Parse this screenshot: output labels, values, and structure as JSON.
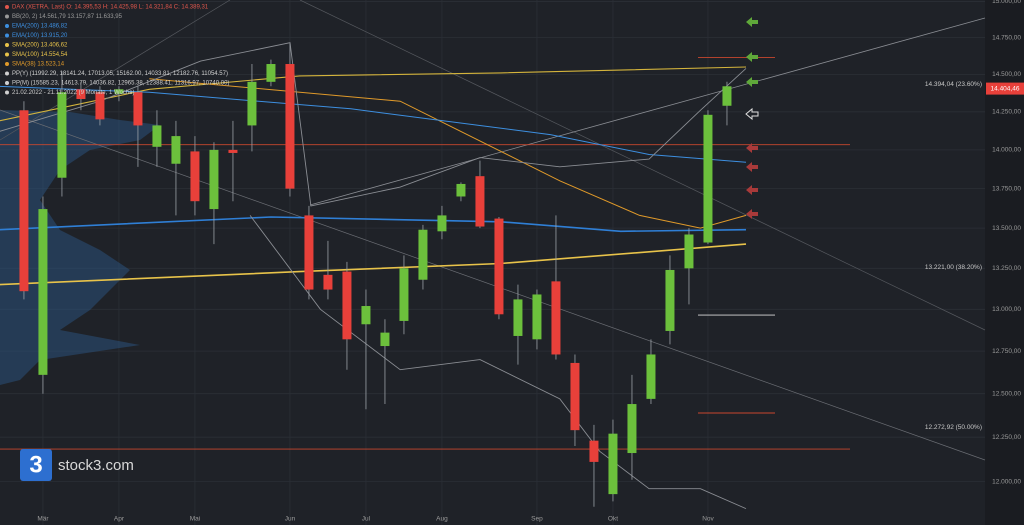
{
  "chart_data": {
    "type": "candlestick",
    "legend": [
      {
        "text": "DAX (XETRA, Last)  O: 14.395,53  H: 14.425,98  L: 14.321,84  C: 14.389,31",
        "color": "#e2574c"
      },
      {
        "text": "BB(20, 2)  14.561,79  13.157,87  11.633,95",
        "color": "#9a9a9a"
      },
      {
        "text": "EMA(200)  13.486,82",
        "color": "#3d8fe0"
      },
      {
        "text": "EMA(100)  13.915,20",
        "color": "#3d8fe0"
      },
      {
        "text": "SMA(200)  13.406,62",
        "color": "#e8c34a"
      },
      {
        "text": "SMA(100)  14.554,54",
        "color": "#e8c34a"
      },
      {
        "text": "SMA(38)  13.523,14",
        "color": "#e09a2a"
      },
      {
        "text": "PP(Y)  (11992.29, 18141.24, 17013.05, 15162.00, 14033.81, 12182.76, 11054.57)",
        "color": "#d0d0d0"
      },
      {
        "text": "PP(M)  (15585.23, 14613.79, 14036.82, 12965.38, 12388.41, 11316.97, 10740.00)",
        "color": "#d0d0d0"
      },
      {
        "text": "21.02.2022 - 21.11.2022  (9 Monate, 1 Woche)",
        "color": "#d0d0d0"
      }
    ],
    "logo": "stock3.com",
    "logo_mark": "3",
    "up_color": "#6cc03c",
    "down_color": "#e8403a",
    "log_scale": true,
    "grid": true,
    "ylim": [
      11760,
      15010
    ],
    "xlim": [
      -1.26,
      50.58
    ],
    "yticks": [
      {
        "value": 15000,
        "label": "15.000,00"
      },
      {
        "value": 14750,
        "label": "14.750,00"
      },
      {
        "value": 14500,
        "label": "14.500,00"
      },
      {
        "value": 14250,
        "label": "14.250,00"
      },
      {
        "value": 14000,
        "label": "14.000,00"
      },
      {
        "value": 13750,
        "label": "13.750,00"
      },
      {
        "value": 13500,
        "label": "13.500,00"
      },
      {
        "value": 13250,
        "label": "13.250,00"
      },
      {
        "value": 13000,
        "label": "13.000,00"
      },
      {
        "value": 12750,
        "label": "12.750,00"
      },
      {
        "value": 12500,
        "label": "12.500,00"
      },
      {
        "value": 12250,
        "label": "12.250,00"
      },
      {
        "value": 12000,
        "label": "12.000,00"
      }
    ],
    "xticks": [
      {
        "value": 1,
        "label": "Mär"
      },
      {
        "value": 5,
        "label": "Apr"
      },
      {
        "value": 9,
        "label": "Mai"
      },
      {
        "value": 14,
        "label": "Jun"
      },
      {
        "value": 18,
        "label": "Jul"
      },
      {
        "value": 22,
        "label": "Aug"
      },
      {
        "value": 27,
        "label": "Sep"
      },
      {
        "value": 31,
        "label": "Okt"
      },
      {
        "value": 36,
        "label": "Nov"
      }
    ],
    "candles": [
      {
        "open": 14260,
        "high": 14320,
        "low": 13060,
        "close": 13110
      },
      {
        "open": 12610,
        "high": 13700,
        "low": 12500,
        "close": 13620
      },
      {
        "open": 13820,
        "high": 14520,
        "low": 13700,
        "close": 14380
      },
      {
        "open": 14400,
        "high": 14450,
        "low": 14260,
        "close": 14335
      },
      {
        "open": 14380,
        "high": 14420,
        "low": 14160,
        "close": 14200
      },
      {
        "open": 14370,
        "high": 14420,
        "low": 14320,
        "close": 14400
      },
      {
        "open": 14380,
        "high": 14420,
        "low": 13890,
        "close": 14160
      },
      {
        "open": 14020,
        "high": 14260,
        "low": 13890,
        "close": 14160
      },
      {
        "open": 13910,
        "high": 14190,
        "low": 13580,
        "close": 14090
      },
      {
        "open": 13990,
        "high": 14090,
        "low": 13580,
        "close": 13670
      },
      {
        "open": 13620,
        "high": 14050,
        "low": 13400,
        "close": 14000
      },
      {
        "open": 14000,
        "high": 14190,
        "low": 13670,
        "close": 13980
      },
      {
        "open": 14160,
        "high": 14570,
        "low": 13990,
        "close": 14450
      },
      {
        "open": 14450,
        "high": 14600,
        "low": 14420,
        "close": 14570
      },
      {
        "open": 14570,
        "high": 14710,
        "low": 13700,
        "close": 13750
      },
      {
        "open": 13580,
        "high": 13640,
        "low": 13060,
        "close": 13120
      },
      {
        "open": 13210,
        "high": 13420,
        "low": 13060,
        "close": 13120
      },
      {
        "open": 13230,
        "high": 13290,
        "low": 12640,
        "close": 12820
      },
      {
        "open": 12910,
        "high": 13120,
        "low": 12410,
        "close": 13020
      },
      {
        "open": 12780,
        "high": 12940,
        "low": 12440,
        "close": 12860
      },
      {
        "open": 12930,
        "high": 13330,
        "low": 12850,
        "close": 13250
      },
      {
        "open": 13180,
        "high": 13520,
        "low": 13120,
        "close": 13490
      },
      {
        "open": 13480,
        "high": 13640,
        "low": 13430,
        "close": 13580
      },
      {
        "open": 13700,
        "high": 13790,
        "low": 13670,
        "close": 13780
      },
      {
        "open": 13830,
        "high": 13930,
        "low": 13500,
        "close": 13510
      },
      {
        "open": 13560,
        "high": 13570,
        "low": 12940,
        "close": 12970
      },
      {
        "open": 12840,
        "high": 13150,
        "low": 12670,
        "close": 13060
      },
      {
        "open": 12820,
        "high": 13120,
        "low": 12760,
        "close": 13090
      },
      {
        "open": 13170,
        "high": 13580,
        "low": 12700,
        "close": 12730
      },
      {
        "open": 12680,
        "high": 12730,
        "low": 12200,
        "close": 12290
      },
      {
        "open": 12230,
        "high": 12320,
        "low": 11860,
        "close": 12110
      },
      {
        "open": 11930,
        "high": 12350,
        "low": 11890,
        "close": 12270
      },
      {
        "open": 12160,
        "high": 12610,
        "low": 12010,
        "close": 12440
      },
      {
        "open": 12470,
        "high": 12820,
        "low": 12440,
        "close": 12730
      },
      {
        "open": 12870,
        "high": 13330,
        "low": 12790,
        "close": 13240
      },
      {
        "open": 13250,
        "high": 13500,
        "low": 13030,
        "close": 13460
      },
      {
        "open": 13410,
        "high": 14260,
        "low": 13400,
        "close": 14230
      },
      {
        "open": 14290,
        "high": 14450,
        "low": 14160,
        "close": 14420
      }
    ],
    "lines": [
      {
        "color": "#e8c34a",
        "width": 1.6,
        "x": [
          -1.3,
          14.5,
          25.1,
          38
        ],
        "values": [
          13150,
          13230,
          13280,
          13400
        ]
      },
      {
        "color": "#d4b43c",
        "width": 1.1,
        "x": [
          -1.3,
          6.6,
          14.5,
          25.1,
          38
        ],
        "values": [
          14190,
          14400,
          14490,
          14510,
          14550
        ]
      },
      {
        "color": "#e09a2a",
        "width": 1,
        "x": [
          6.6,
          19.8,
          28.2,
          32.4,
          35.6,
          38
        ],
        "values": [
          14470,
          14320,
          13800,
          13580,
          13500,
          13580
        ]
      },
      {
        "color": "#2f7fd6",
        "width": 1.6,
        "x": [
          -1.3,
          13,
          25.1,
          31.4,
          38
        ],
        "values": [
          13490,
          13570,
          13540,
          13480,
          13490
        ]
      },
      {
        "color": "#3d8fe0",
        "width": 1,
        "x": [
          -1.3,
          6.6,
          17.2,
          27.7,
          32.9,
          38
        ],
        "values": [
          14420,
          14380,
          14270,
          14100,
          13970,
          13920
        ]
      },
      {
        "color": "#8a8d93",
        "width": 0.9,
        "x": [
          -1.3,
          4,
          9.3,
          14,
          15.1,
          19.8,
          24,
          28.2,
          32.9,
          35.6,
          38
        ],
        "values": [
          14120,
          14320,
          14590,
          14715,
          13640,
          13760,
          13950,
          13890,
          13940,
          14260,
          14540
        ]
      },
      {
        "color": "#8a8d93",
        "width": 0.9,
        "x": [
          11.9,
          15.6,
          19.8,
          24,
          28.2,
          30.3,
          32.9,
          35.6,
          38
        ],
        "values": [
          13580,
          13000,
          12640,
          12700,
          12470,
          12170,
          11960,
          11960,
          11850
        ]
      }
    ],
    "pp_year_lines": [
      14033.81,
      12182.76
    ],
    "pp_year_color": "#c8472e",
    "pp_month_lines": [
      14613.79,
      12965.38,
      12388.41
    ],
    "pp_month_colors": [
      "#c8472e",
      "#d8d8d8",
      "#c8472e"
    ],
    "fib_labels": [
      {
        "value": 14394.04,
        "label": "14.394,04 (23.60%)"
      },
      {
        "value": 13221.0,
        "label": "13.221,00 (38.20%)"
      },
      {
        "value": 12272.92,
        "label": "12.272,92 (50.00%)"
      }
    ],
    "last_price": {
      "value": 14404.46,
      "label": "14.404,46"
    },
    "last_price_color": "#e8403a"
  }
}
